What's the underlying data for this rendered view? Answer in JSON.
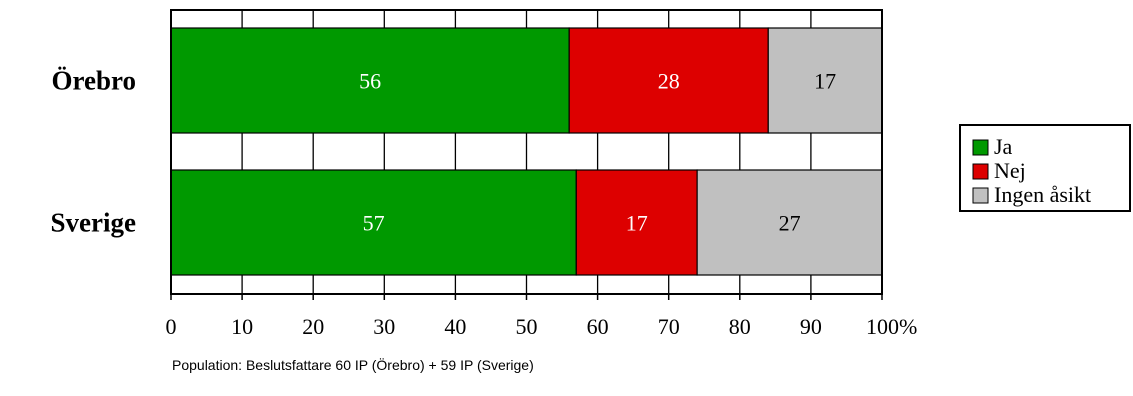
{
  "chart_data": {
    "type": "bar",
    "orientation": "horizontal",
    "stacked": true,
    "categories": [
      "Örebro",
      "Sverige"
    ],
    "series": [
      {
        "name": "Ja",
        "values": [
          56,
          57
        ],
        "color": "#009900",
        "label_color": "#ffffff"
      },
      {
        "name": "Nej",
        "values": [
          28,
          17
        ],
        "color": "#dd0000",
        "label_color": "#ffffff"
      },
      {
        "name": "Ingen åsikt",
        "values": [
          17,
          27
        ],
        "color": "#c0c0c0",
        "label_color": "#000000"
      }
    ],
    "xlim": [
      0,
      100
    ],
    "xticks": [
      "0",
      "10",
      "20",
      "30",
      "40",
      "50",
      "60",
      "70",
      "80",
      "90",
      "100%"
    ],
    "grid": true,
    "legend_position": "right"
  },
  "footnote": "Population: Beslutsfattare 60 IP (Örebro) + 59 IP (Sverige)"
}
